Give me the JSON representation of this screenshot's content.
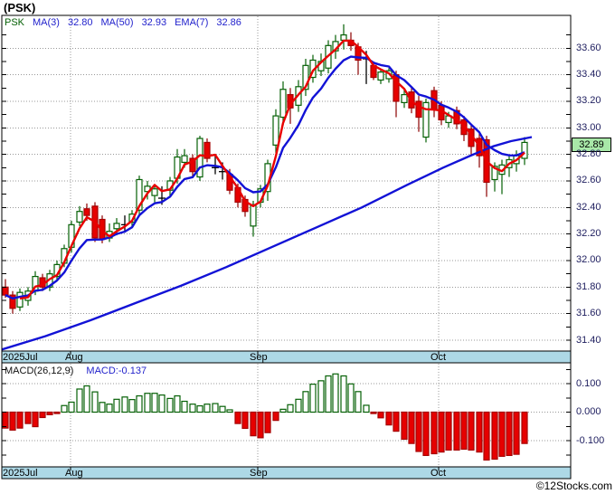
{
  "header": {
    "title": "(PSK)"
  },
  "legend": {
    "symbol": "PSK",
    "ma3_label": "MA(3)",
    "ma3_value": "32.80",
    "ma50_label": "MA(50)",
    "ma50_value": "32.93",
    "ema7_label": "EMA(7)",
    "ema7_value": "32.86"
  },
  "price_box": {
    "value": "32.89"
  },
  "macd_legend": {
    "label": "MACD(26,12,9)",
    "value": "MACD:-0.137"
  },
  "footer": {
    "credit": "©12Stocks.com"
  },
  "colors": {
    "legend_blue": "#2222cc",
    "symbol_green": "#056005",
    "candle_up_stroke": "#056005",
    "candle_down_fill": "#e60000",
    "candle_down_stroke": "#a50000",
    "down_wick": "#8b0000",
    "ma3_line": "#e80000",
    "ema7_line": "#1212d6",
    "ma50_line": "#1212d6",
    "grid": "#999999",
    "axis_strip": "#add8e6",
    "price_box_green": "#a8e8a8",
    "axis_text": "#202060",
    "doji_black": "#000000"
  },
  "chart_data": {
    "type": "bar",
    "subtype": "candlestick_with_macd",
    "title": "(PSK)",
    "legend_values": {
      "ma3": 32.8,
      "ma50": 32.93,
      "ema7": 32.86,
      "last_price": 32.89,
      "macd": -0.137
    },
    "price_panel": {
      "ylim": [
        31.33,
        33.81
      ],
      "y_ticks": [
        33.6,
        33.4,
        33.2,
        33.0,
        32.8,
        32.6,
        32.4,
        32.2,
        32.0,
        31.8,
        31.6,
        31.4
      ],
      "y_minor_step": 0.1,
      "grid": true,
      "months": [
        {
          "label": "2025Jul",
          "label_x": 3,
          "tick_x": null
        },
        {
          "label": "Aug",
          "label_x": 72,
          "tick_x": 78
        },
        {
          "label": "Sep",
          "label_x": 276,
          "tick_x": 285
        },
        {
          "label": "Oct",
          "label_x": 476,
          "tick_x": 485
        }
      ],
      "candles": [
        [
          6,
          31.8,
          31.86,
          31.72,
          31.74
        ],
        [
          14,
          31.74,
          31.77,
          31.6,
          31.64
        ],
        [
          22,
          31.65,
          31.79,
          31.62,
          31.76
        ],
        [
          31,
          31.7,
          31.8,
          31.66,
          31.77
        ],
        [
          39,
          31.77,
          31.92,
          31.74,
          31.88
        ],
        [
          47,
          31.87,
          31.9,
          31.77,
          31.8
        ],
        [
          55,
          31.8,
          31.93,
          31.77,
          31.9
        ],
        [
          63,
          31.88,
          32.0,
          31.85,
          31.97
        ],
        [
          71,
          31.98,
          32.12,
          31.95,
          32.09
        ],
        [
          79,
          32.1,
          32.3,
          32.06,
          32.27
        ],
        [
          88,
          32.29,
          32.41,
          32.26,
          32.37
        ],
        [
          96,
          32.39,
          32.43,
          32.3,
          32.34
        ],
        [
          105,
          32.41,
          32.44,
          32.14,
          32.17
        ],
        [
          113,
          32.31,
          32.34,
          32.13,
          32.16
        ],
        [
          121,
          32.17,
          32.28,
          32.14,
          32.22
        ],
        [
          129,
          32.24,
          32.32,
          32.19,
          32.28
        ],
        [
          138,
          32.27,
          32.34,
          32.21,
          32.27,
          1
        ],
        [
          146,
          32.29,
          32.38,
          32.26,
          32.35
        ],
        [
          154,
          32.38,
          32.64,
          32.33,
          32.61
        ],
        [
          163,
          32.52,
          32.6,
          32.46,
          32.56
        ],
        [
          171,
          32.49,
          32.57,
          32.44,
          32.54
        ],
        [
          179,
          32.5,
          32.56,
          32.42,
          32.47,
          1
        ],
        [
          188,
          32.53,
          32.63,
          32.49,
          32.6
        ],
        [
          196,
          32.62,
          32.84,
          32.58,
          32.78
        ],
        [
          204,
          32.74,
          32.84,
          32.7,
          32.79
        ],
        [
          213,
          32.77,
          32.8,
          32.62,
          32.67
        ],
        [
          221,
          32.63,
          32.94,
          32.6,
          32.92
        ],
        [
          229,
          32.89,
          32.92,
          32.74,
          32.77
        ],
        [
          238,
          32.73,
          32.79,
          32.65,
          32.7,
          1
        ],
        [
          246,
          32.68,
          32.74,
          32.61,
          32.67,
          1
        ],
        [
          254,
          32.65,
          32.69,
          32.5,
          32.53
        ],
        [
          263,
          32.55,
          32.58,
          32.4,
          32.44
        ],
        [
          271,
          32.46,
          32.49,
          32.33,
          32.37
        ],
        [
          280,
          32.26,
          32.45,
          32.18,
          32.42
        ],
        [
          288,
          32.44,
          32.57,
          32.4,
          32.54
        ],
        [
          296,
          32.52,
          32.76,
          32.45,
          32.73
        ],
        [
          305,
          32.87,
          33.14,
          32.81,
          33.09
        ],
        [
          313,
          33.08,
          33.35,
          33.02,
          33.29
        ],
        [
          321,
          33.25,
          33.3,
          33.03,
          33.15
        ],
        [
          330,
          33.17,
          33.36,
          33.12,
          33.31
        ],
        [
          338,
          33.29,
          33.52,
          33.24,
          33.47
        ],
        [
          346,
          33.38,
          33.55,
          33.34,
          33.51
        ],
        [
          355,
          33.43,
          33.56,
          33.39,
          33.5
        ],
        [
          363,
          33.45,
          33.66,
          33.41,
          33.62
        ],
        [
          371,
          33.58,
          33.7,
          33.52,
          33.65
        ],
        [
          380,
          33.66,
          33.78,
          33.59,
          33.7
        ],
        [
          388,
          33.66,
          33.72,
          33.58,
          33.62
        ],
        [
          396,
          33.61,
          33.64,
          33.4,
          33.51
        ],
        [
          405,
          33.55,
          33.58,
          33.33,
          33.52,
          1
        ],
        [
          413,
          33.47,
          33.5,
          33.36,
          33.38
        ],
        [
          421,
          33.36,
          33.44,
          33.33,
          33.42
        ],
        [
          430,
          33.37,
          33.45,
          33.34,
          33.43
        ],
        [
          438,
          33.4,
          33.43,
          33.08,
          33.2
        ],
        [
          447,
          33.19,
          33.29,
          33.15,
          33.25
        ],
        [
          455,
          33.27,
          33.3,
          33.11,
          33.15
        ],
        [
          463,
          33.2,
          33.24,
          32.97,
          33.08
        ],
        [
          471,
          32.93,
          33.22,
          32.89,
          33.19
        ],
        [
          480,
          33.28,
          33.31,
          33.08,
          33.14
        ],
        [
          488,
          33.17,
          33.2,
          33.02,
          33.06
        ],
        [
          496,
          33.04,
          33.12,
          33.0,
          33.09
        ],
        [
          505,
          33.13,
          33.16,
          32.99,
          33.03
        ],
        [
          513,
          33.06,
          33.09,
          32.9,
          32.95
        ],
        [
          521,
          32.99,
          33.03,
          32.8,
          32.86
        ],
        [
          530,
          32.92,
          32.96,
          32.7,
          32.79
        ],
        [
          538,
          32.91,
          32.94,
          32.48,
          32.59
        ],
        [
          547,
          32.61,
          32.74,
          32.52,
          32.71
        ],
        [
          555,
          32.65,
          32.76,
          32.5,
          32.72
        ],
        [
          563,
          32.7,
          32.79,
          32.63,
          32.76
        ],
        [
          571,
          32.73,
          32.83,
          32.67,
          32.79
        ],
        [
          580,
          32.77,
          32.93,
          32.72,
          32.89
        ]
      ],
      "overlays": [
        "MA(3)",
        "EMA(7)",
        "MA(50)"
      ],
      "ma50_line": [
        [
          2,
          31.33
        ],
        [
          50,
          31.43
        ],
        [
          100,
          31.55
        ],
        [
          150,
          31.68
        ],
        [
          200,
          31.81
        ],
        [
          250,
          31.95
        ],
        [
          300,
          32.1
        ],
        [
          350,
          32.25
        ],
        [
          400,
          32.4
        ],
        [
          450,
          32.57
        ],
        [
          490,
          32.7
        ],
        [
          520,
          32.79
        ],
        [
          545,
          32.86
        ],
        [
          565,
          32.9
        ],
        [
          588,
          32.93
        ]
      ]
    },
    "macd_panel": {
      "params": "26,12,9",
      "current_value": -0.137,
      "ylim": [
        -0.195,
        0.173
      ],
      "y_ticks": [
        0.1,
        0.0,
        -0.1
      ],
      "y_minor_step": 0.05,
      "histogram": [
        -0.056,
        -0.063,
        -0.056,
        -0.04,
        -0.051,
        -0.019,
        -0.009,
        -0.005,
        0.023,
        0.035,
        0.081,
        0.092,
        0.071,
        0.034,
        0.028,
        0.045,
        0.053,
        0.044,
        0.057,
        0.066,
        0.066,
        0.06,
        0.048,
        0.057,
        0.038,
        0.028,
        0.022,
        0.028,
        0.03,
        0.02,
        0.008,
        -0.04,
        -0.057,
        -0.083,
        -0.09,
        -0.072,
        -0.029,
        0.01,
        0.026,
        0.045,
        0.072,
        0.098,
        0.11,
        0.127,
        0.134,
        0.127,
        0.099,
        0.072,
        0.024,
        -0.005,
        -0.02,
        -0.045,
        -0.067,
        -0.095,
        -0.11,
        -0.138,
        -0.152,
        -0.146,
        -0.14,
        -0.133,
        -0.133,
        -0.13,
        -0.133,
        -0.14,
        -0.168,
        -0.165,
        -0.155,
        -0.152,
        -0.148,
        -0.11
      ]
    }
  }
}
